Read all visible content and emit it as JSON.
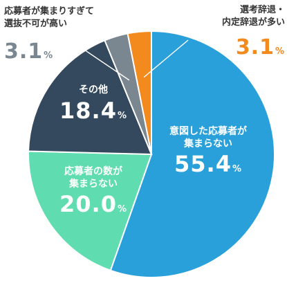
{
  "chart_data": {
    "type": "pie",
    "title": "",
    "slices": [
      {
        "label_lines": [
          "意図した応募者が",
          "集まらない"
        ],
        "value": 55.4,
        "value_text": "55.4",
        "color": "#2aa0da"
      },
      {
        "label_lines": [
          "応募者の数が",
          "集まらない"
        ],
        "value": 20.0,
        "value_text": "20.0",
        "color": "#5fdcb0"
      },
      {
        "label_lines": [
          "その他"
        ],
        "value": 18.4,
        "value_text": "18.4",
        "color": "#34495e"
      },
      {
        "label_lines": [
          "応募者が集まりすぎて",
          "選抜不可が高い"
        ],
        "value": 3.1,
        "value_text": "3.1",
        "color": "#7a8791"
      },
      {
        "label_lines": [
          "選考辞退・",
          "内定辞退が多い"
        ],
        "value": 3.1,
        "value_text": "3.1",
        "color": "#f28a1d"
      }
    ],
    "unit": "%",
    "start_angle_deg": 0,
    "direction": "clockwise",
    "slice_separators": "white",
    "legend": "none"
  }
}
